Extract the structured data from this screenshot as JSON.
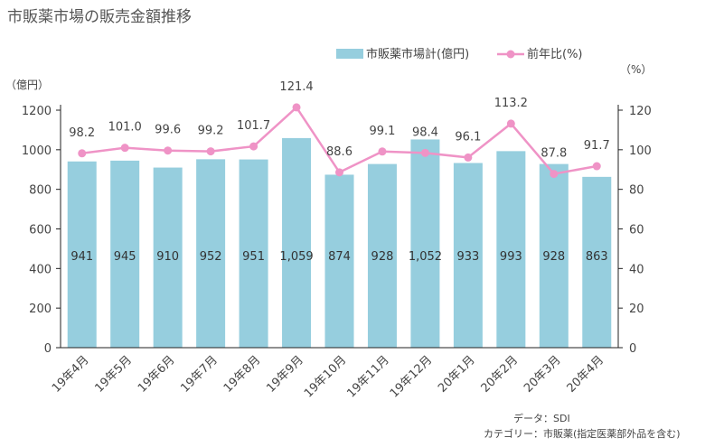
{
  "title": "市販薬市場の販売金額推移",
  "legend": {
    "bar": "市販薬市場計(億円)",
    "line": "前年比(%)"
  },
  "units": {
    "left": "（億円）",
    "right": "（%）"
  },
  "notes": {
    "source": "データ：SDI",
    "category": "カテゴリー：市販薬(指定医薬部外品を含む)"
  },
  "colors": {
    "bar": "#96cede",
    "line": "#ef93c6",
    "axis": "#222222"
  },
  "chart_data": {
    "type": "bar",
    "categories": [
      "19年4月",
      "19年5月",
      "19年6月",
      "19年7月",
      "19年8月",
      "19年9月",
      "19年10月",
      "19年11月",
      "19年12月",
      "20年1月",
      "20年2月",
      "20年3月",
      "20年4月"
    ],
    "series": [
      {
        "name": "市販薬市場計(億円)",
        "type": "bar",
        "axis": "left",
        "values": [
          941,
          945,
          910,
          952,
          951,
          1059,
          874,
          928,
          1052,
          933,
          993,
          928,
          863
        ],
        "labels": [
          "941",
          "945",
          "910",
          "952",
          "951",
          "1,059",
          "874",
          "928",
          "1,052",
          "933",
          "993",
          "928",
          "863"
        ]
      },
      {
        "name": "前年比(%)",
        "type": "line",
        "axis": "right",
        "values": [
          98.2,
          101.0,
          99.6,
          99.2,
          101.7,
          121.4,
          88.6,
          99.1,
          98.4,
          96.1,
          113.2,
          87.8,
          91.7
        ],
        "labels": [
          "98.2",
          "101.0",
          "99.6",
          "99.2",
          "101.7",
          "121.4",
          "88.6",
          "99.1",
          "98.4",
          "96.1",
          "113.2",
          "87.8",
          "91.7"
        ]
      }
    ],
    "y_left": {
      "min": 0,
      "max": 1200,
      "ticks": [
        0,
        200,
        400,
        600,
        800,
        1000,
        1200
      ]
    },
    "y_right": {
      "min": 0,
      "max": 120,
      "ticks": [
        0,
        20,
        40,
        60,
        80,
        100,
        120
      ]
    },
    "grid": false,
    "legend_position": "top-right"
  }
}
